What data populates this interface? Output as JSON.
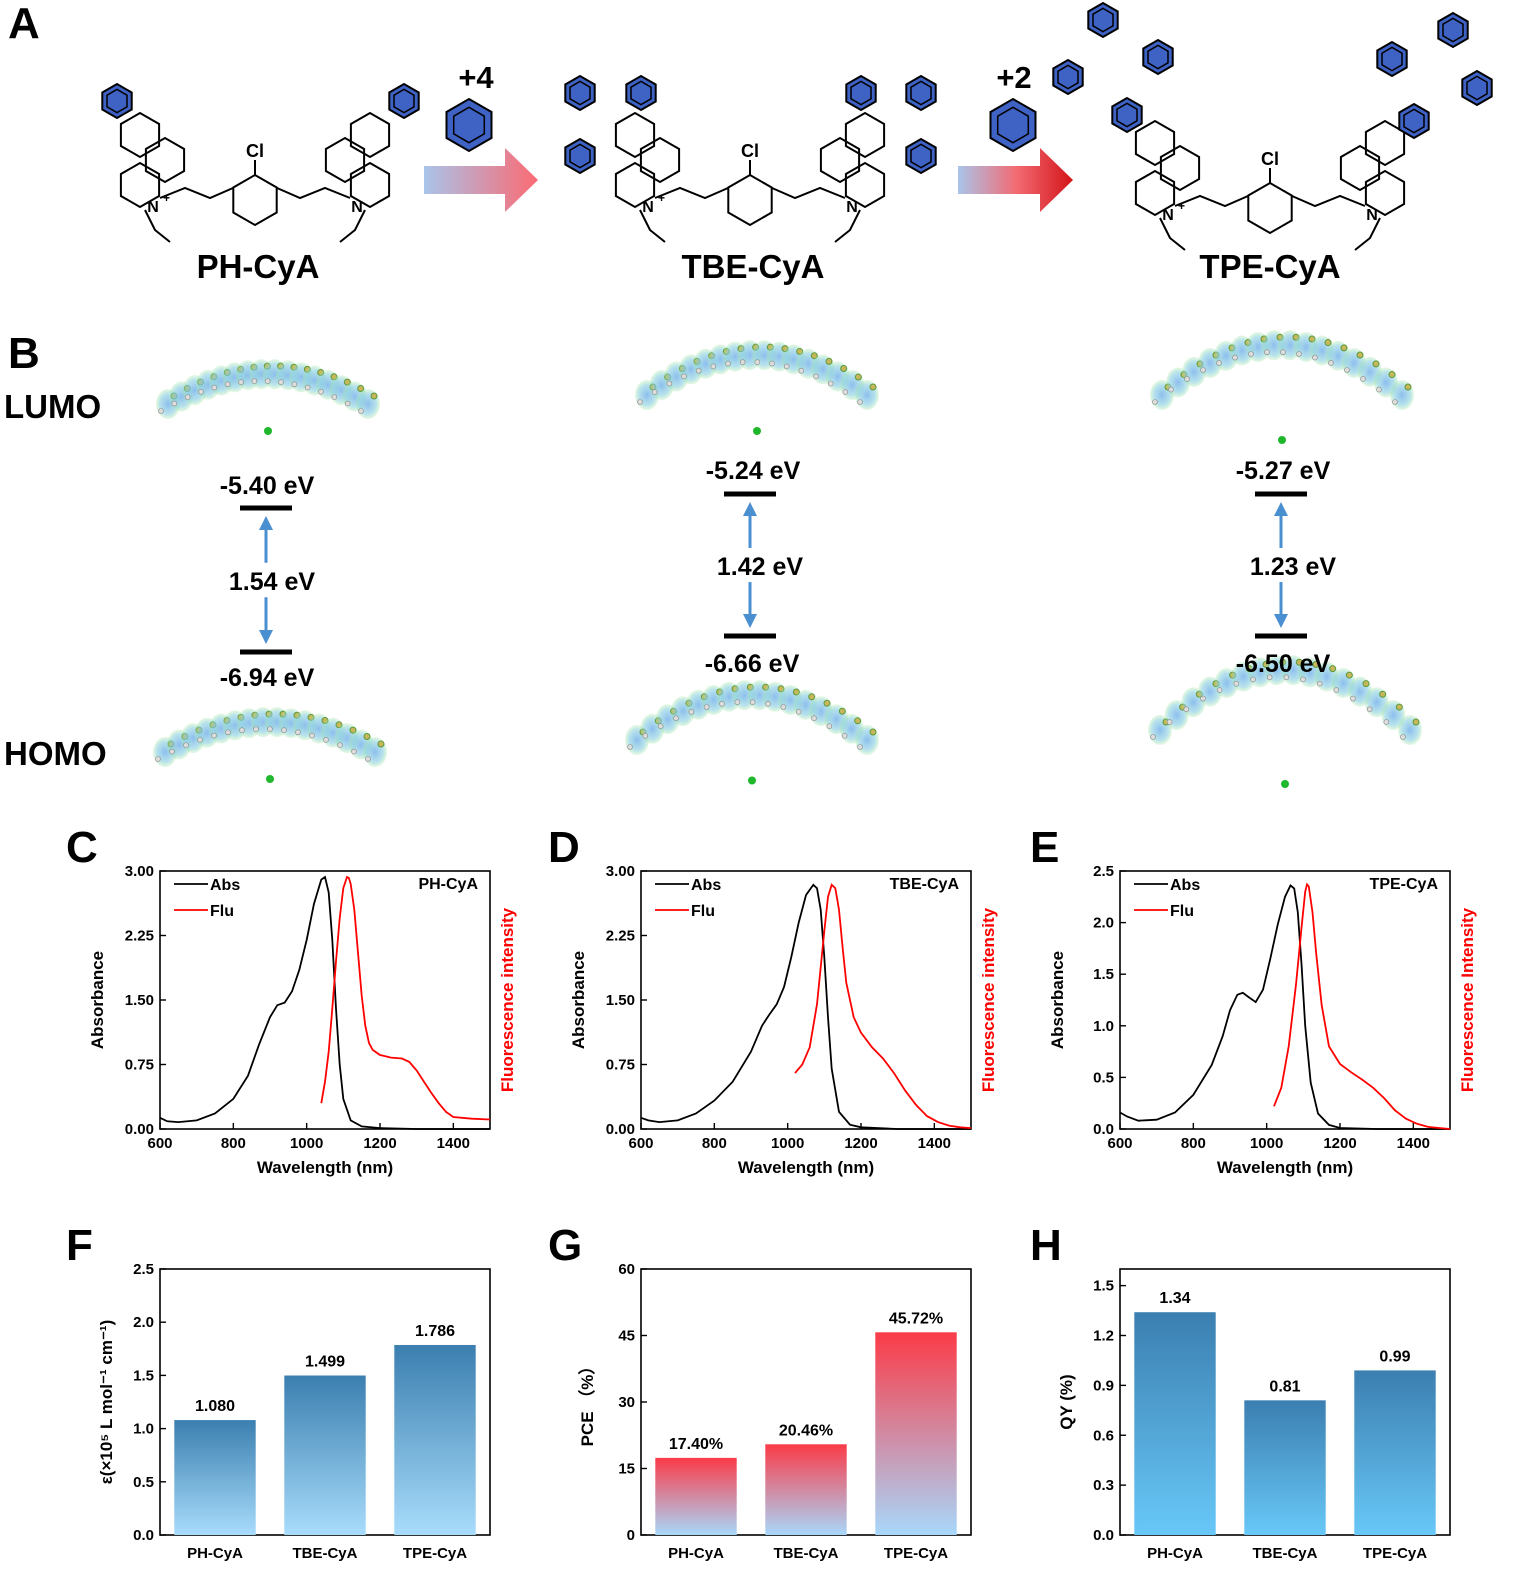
{
  "panel_labels": [
    "A",
    "B",
    "C",
    "D",
    "E",
    "F",
    "G",
    "H"
  ],
  "panel_a": {
    "compounds": [
      "PH-CyA",
      "TBE-CyA",
      "TPE-CyA"
    ],
    "arrows": [
      "+4",
      "+2"
    ],
    "atom_labels": {
      "cl": "Cl",
      "n_plus": "N",
      "plus": "+",
      "n": "N"
    }
  },
  "panel_b": {
    "lumo_label": "LUMO",
    "homo_label": "HOMO",
    "levels": [
      {
        "lumo": "-5.40 eV",
        "gap": "1.54 eV",
        "homo": "-6.94 eV"
      },
      {
        "lumo": "-5.24 eV",
        "gap": "1.42 eV",
        "homo": "-6.66 eV"
      },
      {
        "lumo": "-5.27 eV",
        "gap": "1.23 eV",
        "homo": "-6.50 eV"
      }
    ]
  },
  "chart_data": [
    {
      "panel": "C",
      "type": "line",
      "title": "PH-CyA",
      "xlabel": "Wavelength (nm)",
      "ylabel": "Absorbance",
      "y2label": "Fluorescence intensity",
      "xlim": [
        600,
        1500
      ],
      "xticks": [
        "600",
        "800",
        "1000",
        "1200",
        "1400"
      ],
      "ylim": [
        0,
        3.0
      ],
      "yticks": [
        "0.00",
        "0.75",
        "1.50",
        "2.25",
        "3.00"
      ],
      "legend_position": "top-left",
      "series": [
        {
          "name": "Abs",
          "color": "#000000",
          "x": [
            600,
            620,
            650,
            700,
            750,
            800,
            840,
            870,
            900,
            920,
            940,
            960,
            980,
            1000,
            1020,
            1040,
            1050,
            1060,
            1070,
            1080,
            1090,
            1100,
            1120,
            1150,
            1200,
            1300,
            1400,
            1500
          ],
          "y": [
            0.13,
            0.09,
            0.08,
            0.1,
            0.18,
            0.35,
            0.62,
            0.98,
            1.3,
            1.44,
            1.47,
            1.6,
            1.85,
            2.2,
            2.62,
            2.9,
            2.93,
            2.75,
            2.2,
            1.4,
            0.75,
            0.35,
            0.1,
            0.03,
            0.01,
            0.0,
            0.0,
            0.0
          ]
        },
        {
          "name": "Flu",
          "color": "#ff0000",
          "x": [
            1040,
            1050,
            1060,
            1070,
            1080,
            1090,
            1100,
            1110,
            1115,
            1120,
            1130,
            1140,
            1150,
            1160,
            1170,
            1180,
            1200,
            1230,
            1260,
            1280,
            1300,
            1320,
            1340,
            1360,
            1380,
            1400,
            1450,
            1500
          ],
          "y": [
            0.3,
            0.55,
            0.9,
            1.4,
            1.95,
            2.45,
            2.8,
            2.93,
            2.92,
            2.85,
            2.55,
            2.05,
            1.55,
            1.2,
            1.0,
            0.92,
            0.86,
            0.83,
            0.82,
            0.78,
            0.68,
            0.55,
            0.42,
            0.3,
            0.2,
            0.14,
            0.12,
            0.11
          ]
        }
      ]
    },
    {
      "panel": "D",
      "type": "line",
      "title": "TBE-CyA",
      "xlabel": "Wavelength (nm)",
      "ylabel": "Absorbance",
      "y2label": "Fluorescence intensity",
      "xlim": [
        600,
        1500
      ],
      "xticks": [
        "600",
        "800",
        "1000",
        "1200",
        "1400"
      ],
      "ylim": [
        0,
        3.0
      ],
      "yticks": [
        "0.00",
        "0.75",
        "1.50",
        "2.25",
        "3.00"
      ],
      "legend_position": "top-left",
      "series": [
        {
          "name": "Abs",
          "color": "#000000",
          "x": [
            600,
            620,
            650,
            700,
            750,
            800,
            850,
            900,
            930,
            950,
            970,
            990,
            1010,
            1030,
            1050,
            1070,
            1080,
            1090,
            1100,
            1110,
            1120,
            1140,
            1170,
            1200,
            1300,
            1400,
            1500
          ],
          "y": [
            0.13,
            0.1,
            0.08,
            0.1,
            0.18,
            0.33,
            0.55,
            0.9,
            1.2,
            1.33,
            1.45,
            1.65,
            2.0,
            2.4,
            2.72,
            2.84,
            2.8,
            2.55,
            2.0,
            1.3,
            0.7,
            0.2,
            0.05,
            0.02,
            0.0,
            0.0,
            0.0
          ]
        },
        {
          "name": "Flu",
          "color": "#ff0000",
          "x": [
            1020,
            1040,
            1060,
            1080,
            1100,
            1110,
            1120,
            1130,
            1140,
            1150,
            1160,
            1180,
            1200,
            1230,
            1260,
            1290,
            1320,
            1350,
            1380,
            1410,
            1440,
            1470,
            1500
          ],
          "y": [
            0.65,
            0.75,
            0.95,
            1.45,
            2.3,
            2.7,
            2.84,
            2.8,
            2.55,
            2.1,
            1.7,
            1.3,
            1.12,
            0.95,
            0.82,
            0.65,
            0.45,
            0.28,
            0.15,
            0.08,
            0.04,
            0.02,
            0.01
          ]
        }
      ]
    },
    {
      "panel": "E",
      "type": "line",
      "title": "TPE-CyA",
      "xlabel": "Wavelength (nm)",
      "ylabel": "Absorbance",
      "y2label": "Fluorescence Intensity",
      "xlim": [
        600,
        1500
      ],
      "xticks": [
        "600",
        "800",
        "1000",
        "1200",
        "1400"
      ],
      "ylim": [
        0,
        2.5
      ],
      "yticks": [
        "0.0",
        "0.5",
        "1.0",
        "1.5",
        "2.0",
        "2.5"
      ],
      "legend_position": "top-left",
      "series": [
        {
          "name": "Abs",
          "color": "#000000",
          "x": [
            600,
            620,
            650,
            700,
            750,
            800,
            850,
            880,
            900,
            920,
            935,
            950,
            970,
            990,
            1010,
            1030,
            1050,
            1065,
            1075,
            1085,
            1095,
            1105,
            1120,
            1140,
            1170,
            1200,
            1300,
            1400,
            1500
          ],
          "y": [
            0.16,
            0.12,
            0.08,
            0.09,
            0.16,
            0.33,
            0.62,
            0.9,
            1.15,
            1.3,
            1.32,
            1.28,
            1.23,
            1.35,
            1.65,
            1.98,
            2.25,
            2.36,
            2.33,
            2.1,
            1.6,
            1.0,
            0.45,
            0.15,
            0.04,
            0.01,
            0.0,
            0.0,
            0.0
          ]
        },
        {
          "name": "Flu",
          "color": "#ff0000",
          "x": [
            1020,
            1040,
            1060,
            1080,
            1095,
            1105,
            1110,
            1115,
            1125,
            1135,
            1150,
            1170,
            1200,
            1230,
            1260,
            1290,
            1320,
            1350,
            1380,
            1410,
            1440,
            1470,
            1500
          ],
          "y": [
            0.22,
            0.4,
            0.8,
            1.4,
            1.95,
            2.3,
            2.37,
            2.35,
            2.1,
            1.7,
            1.2,
            0.8,
            0.63,
            0.55,
            0.48,
            0.4,
            0.3,
            0.18,
            0.1,
            0.05,
            0.02,
            0.01,
            0.0
          ]
        }
      ]
    },
    {
      "panel": "F",
      "type": "bar",
      "ylabel": "ε(×10⁵ L mol⁻¹ cm⁻¹)",
      "categories": [
        "PH-CyA",
        "TBE-CyA",
        "TPE-CyA"
      ],
      "values": [
        1.08,
        1.499,
        1.786
      ],
      "value_labels": [
        "1.080",
        "1.499",
        "1.786"
      ],
      "ylim": [
        0,
        2.5
      ],
      "yticks": [
        "0.0",
        "0.5",
        "1.0",
        "1.5",
        "2.0",
        "2.5"
      ],
      "colors": {
        "top": "#3b7fb0",
        "bottom": "#a8dcfb"
      }
    },
    {
      "panel": "G",
      "type": "bar",
      "ylabel": "PCE （%）",
      "categories": [
        "PH-CyA",
        "TBE-CyA",
        "TPE-CyA"
      ],
      "values": [
        17.4,
        20.46,
        45.72
      ],
      "value_labels": [
        "17.40%",
        "20.46%",
        "45.72%"
      ],
      "ylim": [
        0,
        60
      ],
      "yticks": [
        "0",
        "15",
        "30",
        "45",
        "60"
      ],
      "colors": {
        "top": "#fb3b48",
        "bottom": "#a8d8fb"
      }
    },
    {
      "panel": "H",
      "type": "bar",
      "ylabel": "QY (%)",
      "categories": [
        "PH-CyA",
        "TBE-CyA",
        "TPE-CyA"
      ],
      "values": [
        1.34,
        0.81,
        0.99
      ],
      "value_labels": [
        "1.34",
        "0.81",
        "0.99"
      ],
      "ylim": [
        0,
        1.6
      ],
      "yticks": [
        "0.0",
        "0.3",
        "0.6",
        "0.9",
        "1.2",
        "1.5"
      ],
      "colors": {
        "top": "#3b7fb0",
        "bottom": "#68c8f8"
      }
    }
  ]
}
